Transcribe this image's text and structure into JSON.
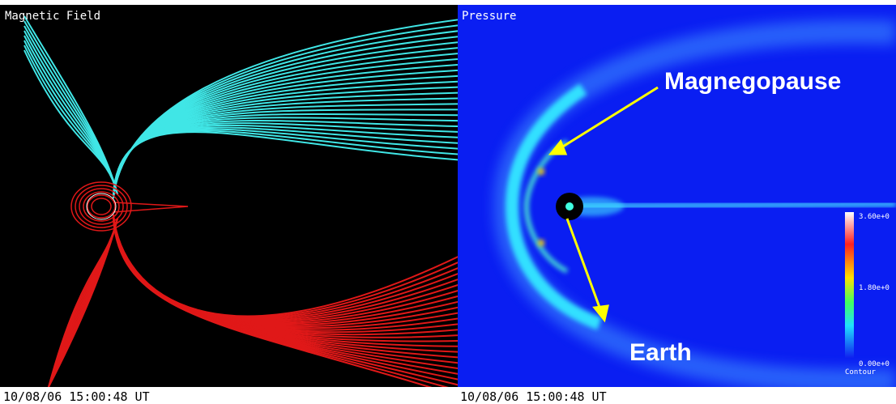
{
  "panels": [
    {
      "title": "Magnetic Field",
      "timestamp": "10/08/06 15:00:48 UT"
    },
    {
      "title": "Pressure",
      "timestamp": "10/08/06 15:00:48 UT",
      "annotations": [
        "Magnegopause",
        "Earth"
      ],
      "colorbar": {
        "labels": [
          "3.60e+0",
          "1.80e+0",
          "0.00e+0"
        ],
        "caption": "Contour"
      }
    }
  ]
}
